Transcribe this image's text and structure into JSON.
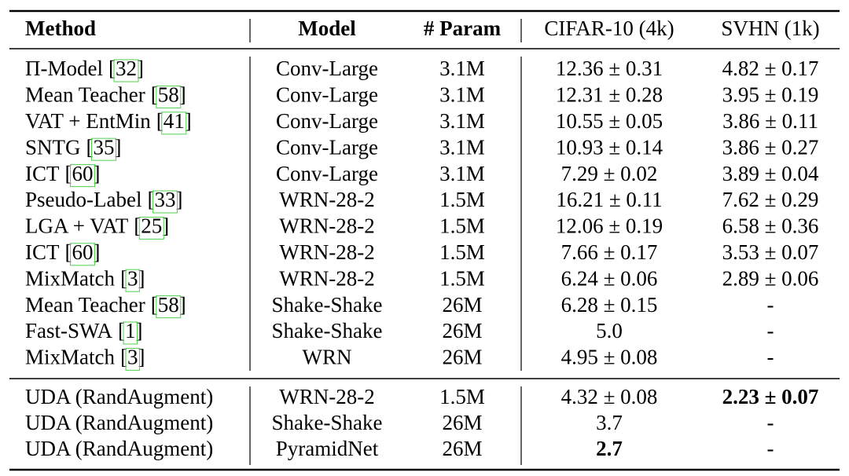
{
  "table": {
    "header": [
      "Method",
      "Model",
      "# Param",
      "CIFAR-10 (4k)",
      "SVHN (1k)"
    ],
    "rows": [
      {
        "method": "Π-Model",
        "cite": "[32]",
        "model": "Conv-Large",
        "param": "3.1M",
        "cifar": "12.36 ± 0.31",
        "svhn": "4.82 ± 0.17"
      },
      {
        "method": "Mean Teacher",
        "cite": "[58]",
        "model": "Conv-Large",
        "param": "3.1M",
        "cifar": "12.31 ± 0.28",
        "svhn": "3.95 ± 0.19"
      },
      {
        "method": "VAT + EntMin",
        "cite": "[41]",
        "model": "Conv-Large",
        "param": "3.1M",
        "cifar": "10.55 ± 0.05",
        "svhn": "3.86 ± 0.11"
      },
      {
        "method": "SNTG",
        "cite": "[35]",
        "model": "Conv-Large",
        "param": "3.1M",
        "cifar": "10.93 ± 0.14",
        "svhn": "3.86 ± 0.27"
      },
      {
        "method": "ICT",
        "cite": "[60]",
        "model": "Conv-Large",
        "param": "3.1M",
        "cifar": "7.29 ± 0.02",
        "svhn": "3.89 ± 0.04"
      },
      {
        "method": "Pseudo-Label",
        "cite": "[33]",
        "model": "WRN-28-2",
        "param": "1.5M",
        "cifar": "16.21 ± 0.11",
        "svhn": "7.62 ± 0.29"
      },
      {
        "method": "LGA + VAT",
        "cite": "[25]",
        "model": "WRN-28-2",
        "param": "1.5M",
        "cifar": "12.06 ± 0.19",
        "svhn": "6.58 ± 0.36"
      },
      {
        "method": "ICT",
        "cite": "[60]",
        "model": "WRN-28-2",
        "param": "1.5M",
        "cifar": "7.66 ± 0.17",
        "svhn": "3.53 ± 0.07"
      },
      {
        "method": "MixMatch",
        "cite": "[3]",
        "model": "WRN-28-2",
        "param": "1.5M",
        "cifar": "6.24 ± 0.06",
        "svhn": "2.89 ± 0.06"
      },
      {
        "method": "Mean Teacher",
        "cite": "[58]",
        "model": "Shake-Shake",
        "param": "26M",
        "cifar": "6.28 ± 0.15",
        "svhn": "-"
      },
      {
        "method": "Fast-SWA",
        "cite": "[1]",
        "model": "Shake-Shake",
        "param": "26M",
        "cifar": "5.0",
        "svhn": "-"
      },
      {
        "method": "MixMatch",
        "cite": "[3]",
        "model": "WRN",
        "param": "26M",
        "cifar": "4.95 ± 0.08",
        "svhn": "-"
      }
    ],
    "ours": [
      {
        "method": "UDA (RandAugment)",
        "model": "WRN-28-2",
        "param": "1.5M",
        "cifar": "4.32 ± 0.08",
        "svhn": "2.23 ± 0.07",
        "bold": "svhn"
      },
      {
        "method": "UDA (RandAugment)",
        "model": "Shake-Shake",
        "param": "26M",
        "cifar": "3.7",
        "svhn": "-"
      },
      {
        "method": "UDA (RandAugment)",
        "model": "PyramidNet",
        "param": "26M",
        "cifar": "2.7",
        "svhn": "-",
        "bold": "cifar"
      }
    ]
  }
}
